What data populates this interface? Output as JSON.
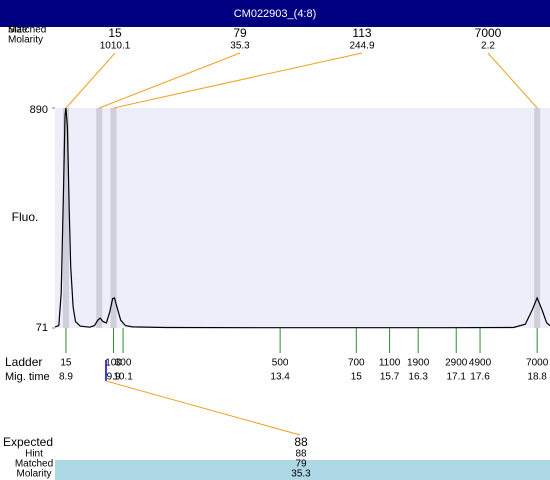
{
  "chart_data": {
    "type": "line",
    "title": "CM022903_(4:8)",
    "ylabel": "Fluo.",
    "ylim": [
      71,
      890
    ],
    "yticks": [
      71,
      890
    ],
    "xlim": [
      8.67,
      19.07
    ],
    "x": [
      8.67,
      8.75,
      8.8,
      8.85,
      8.88,
      8.9,
      8.93,
      8.97,
      9.0,
      9.05,
      9.1,
      9.2,
      9.4,
      9.5,
      9.57,
      9.62,
      9.68,
      9.75,
      9.82,
      9.88,
      9.92,
      9.97,
      10.05,
      10.15,
      10.3,
      11,
      13,
      15,
      17,
      18.3,
      18.55,
      18.7,
      18.8,
      18.9,
      19.0,
      19.07
    ],
    "values": [
      75,
      80,
      200,
      600,
      860,
      890,
      820,
      500,
      300,
      150,
      95,
      78,
      74,
      80,
      100,
      108,
      95,
      90,
      130,
      180,
      183,
      150,
      100,
      80,
      75,
      73,
      72,
      72,
      72,
      73,
      85,
      140,
      183,
      140,
      90,
      80
    ],
    "peak_row_labels": [
      "Size",
      "Matched",
      "Molarity"
    ],
    "peaks": [
      {
        "size": "15",
        "molarity": "1010.1",
        "time": 8.9
      },
      {
        "size": "79",
        "molarity": "35.3",
        "time": 9.6
      },
      {
        "size": "113",
        "molarity": "244.9",
        "time": 9.9
      },
      {
        "size": "7000",
        "molarity": "2.2",
        "time": 18.8
      }
    ],
    "ladder_labels": [
      "Ladder",
      "Mig. time"
    ],
    "ladder": [
      {
        "size": "15",
        "time": 8.9
      },
      {
        "size": "100",
        "time": 9.9
      },
      {
        "size": "300",
        "time": 10.1
      },
      {
        "size": "500",
        "time": 13.4
      },
      {
        "size": "700",
        "time": 15
      },
      {
        "size": "1100",
        "time": 15.7
      },
      {
        "size": "1900",
        "time": 16.3
      },
      {
        "size": "2900",
        "time": 17.1
      },
      {
        "size": "4900",
        "time": 17.6
      },
      {
        "size": "7000",
        "time": 18.8
      }
    ],
    "expected": {
      "labels": [
        "Expected",
        "Hint",
        "Matched",
        "Molarity"
      ],
      "values": [
        "88",
        "88",
        "79",
        "35.3"
      ]
    }
  }
}
